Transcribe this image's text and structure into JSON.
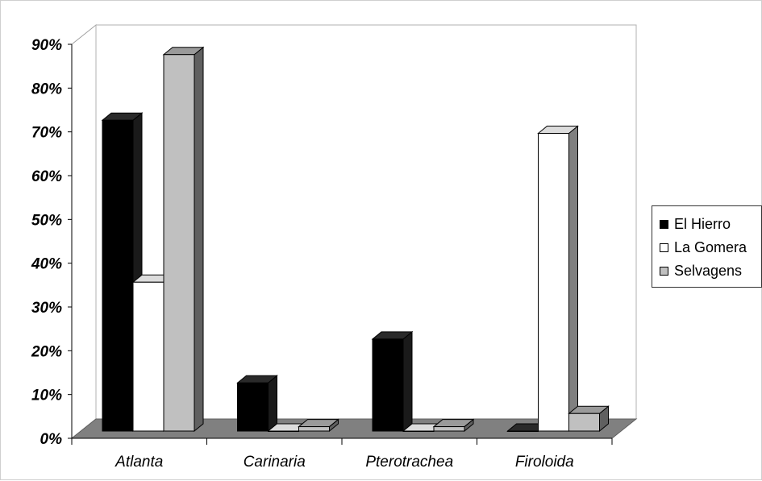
{
  "chart_data": {
    "type": "bar",
    "title": "",
    "xlabel": "",
    "ylabel": "",
    "categories": [
      "Atlanta",
      "Carinaria",
      "Pterotrachea",
      "Firoloida"
    ],
    "series": [
      {
        "name": "El Hierro",
        "values": [
          71,
          11,
          21,
          0
        ],
        "color": "#000000"
      },
      {
        "name": "La Gomera",
        "values": [
          34,
          0,
          0,
          68
        ],
        "color": "#ffffff"
      },
      {
        "name": "Selvagens",
        "values": [
          86,
          1,
          1,
          4
        ],
        "color": "#c0c0c0"
      }
    ],
    "ylim": [
      0,
      90
    ],
    "yticks": [
      "0%",
      "10%",
      "20%",
      "30%",
      "40%",
      "50%",
      "60%",
      "70%",
      "80%",
      "90%"
    ],
    "grid": false,
    "legend_position": "right",
    "floor_color": "#808080",
    "side_wall_color": "#ffffff"
  }
}
